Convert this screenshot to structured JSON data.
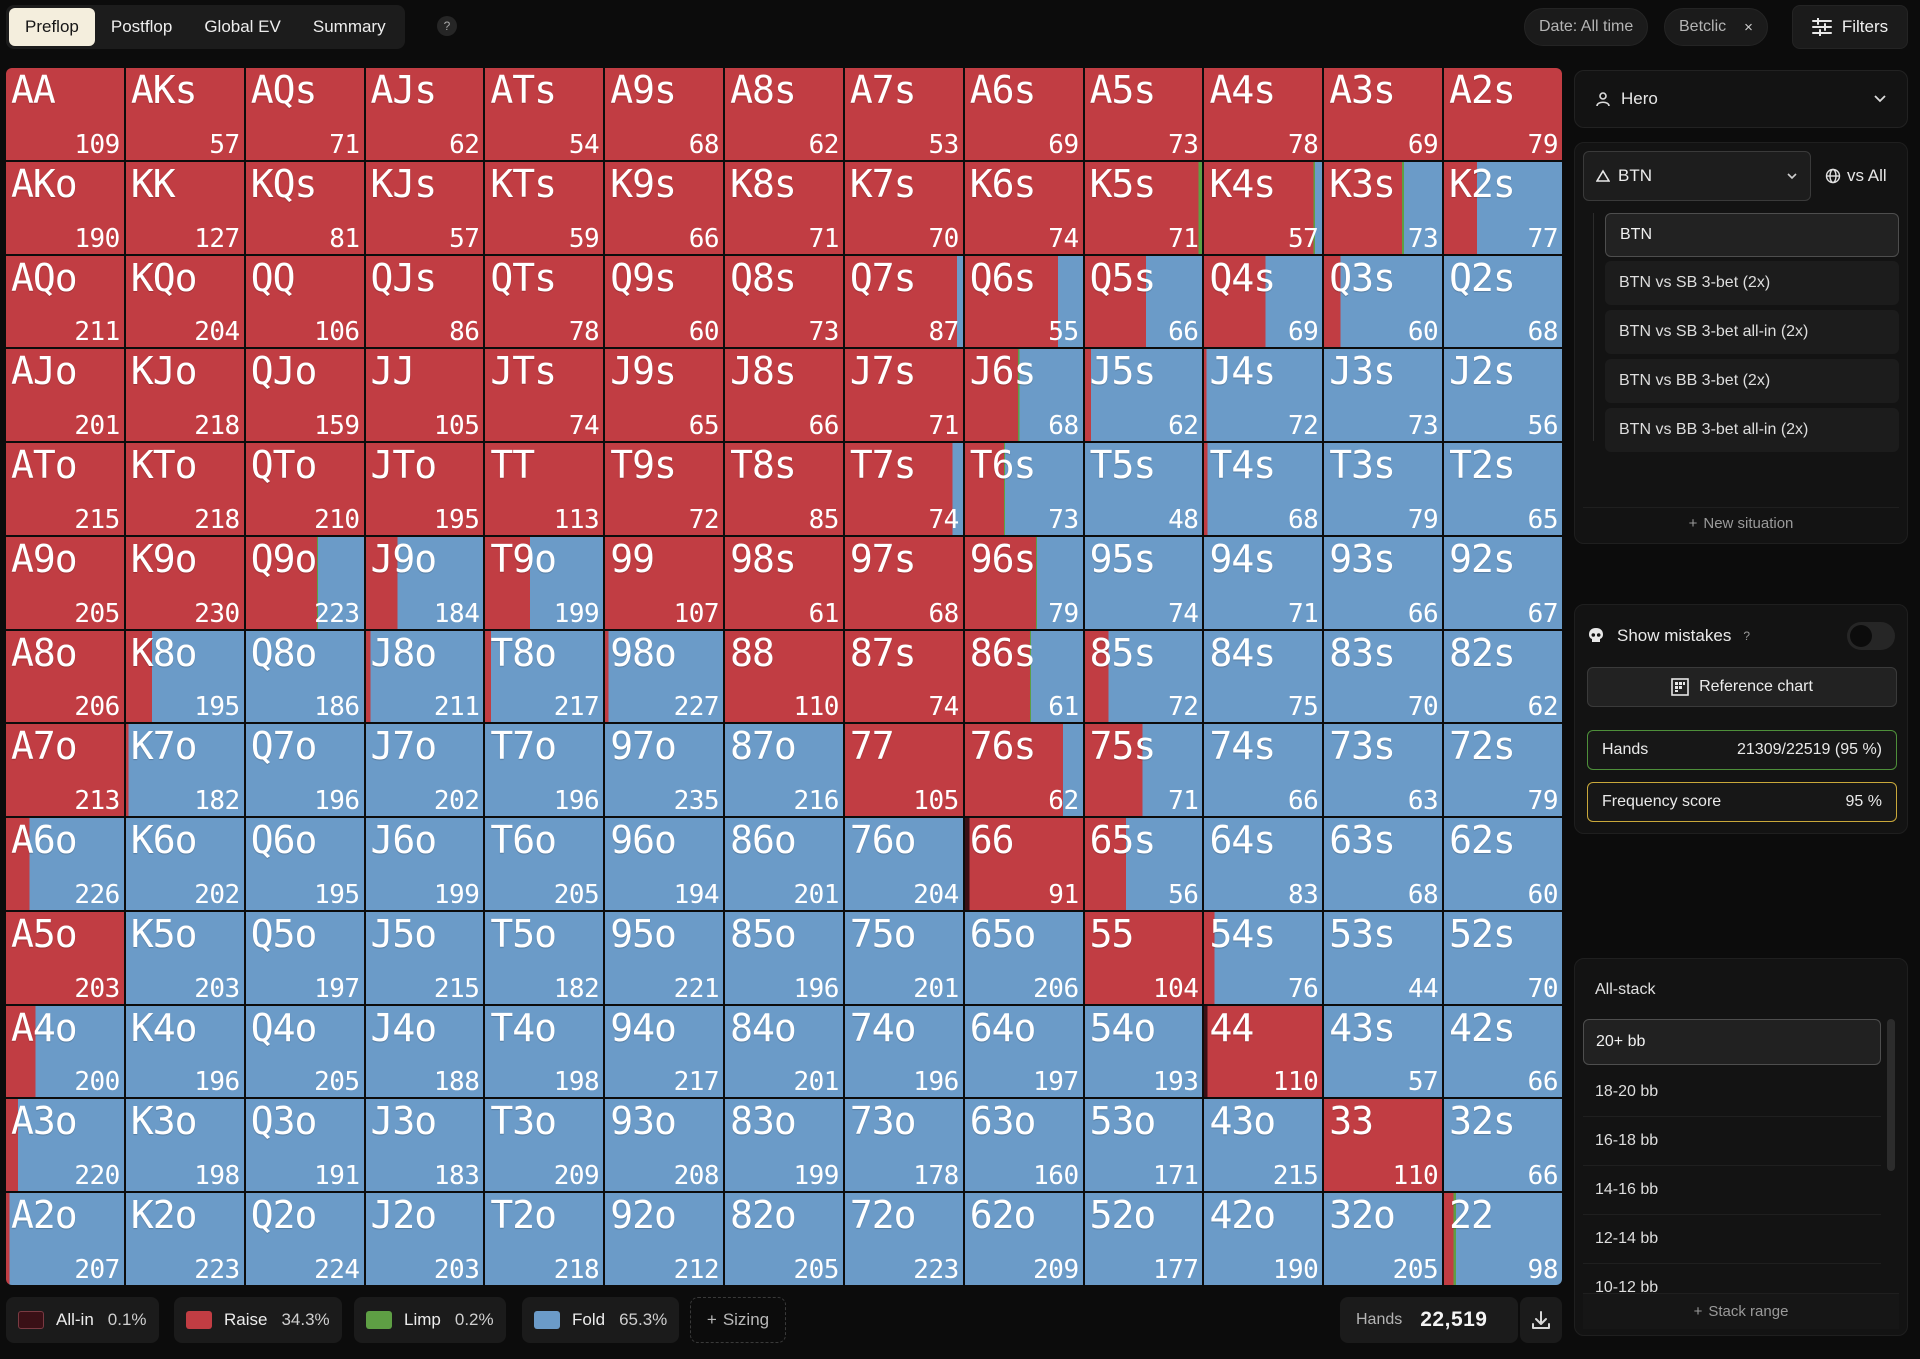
{
  "tabs": [
    {
      "label": "Preflop",
      "active": true
    },
    {
      "label": "Postflop",
      "active": false
    },
    {
      "label": "Global EV",
      "active": false
    },
    {
      "label": "Summary",
      "active": false
    }
  ],
  "help_label": "?",
  "date_chip": "Date: All time",
  "site_chip": "Betclic",
  "chip_close": "×",
  "filters_label": "Filters",
  "colors": {
    "allin": "#3a1016",
    "raise": "#c13d43",
    "limp": "#5e9f44",
    "fold": "#6b9bc8"
  },
  "grid": [
    [
      [
        "AA",
        "109",
        0,
        100,
        0,
        0
      ],
      [
        "AKs",
        "57",
        0,
        100,
        0,
        0
      ],
      [
        "AQs",
        "71",
        0,
        100,
        0,
        0
      ],
      [
        "AJs",
        "62",
        0,
        100,
        0,
        0
      ],
      [
        "ATs",
        "54",
        0,
        100,
        0,
        0
      ],
      [
        "A9s",
        "68",
        0,
        100,
        0,
        0
      ],
      [
        "A8s",
        "62",
        0,
        100,
        0,
        0
      ],
      [
        "A7s",
        "53",
        0,
        100,
        0,
        0
      ],
      [
        "A6s",
        "69",
        0,
        100,
        0,
        0
      ],
      [
        "A5s",
        "73",
        0,
        100,
        0,
        0
      ],
      [
        "A4s",
        "78",
        0,
        100,
        0,
        0
      ],
      [
        "A3s",
        "69",
        0,
        100,
        0,
        0
      ],
      [
        "A2s",
        "79",
        0,
        100,
        0,
        0
      ]
    ],
    [
      [
        "AKo",
        "190",
        0,
        100,
        0,
        0
      ],
      [
        "KK",
        "127",
        0,
        100,
        0,
        0
      ],
      [
        "KQs",
        "81",
        0,
        100,
        0,
        0
      ],
      [
        "KJs",
        "57",
        0,
        100,
        0,
        0
      ],
      [
        "KTs",
        "59",
        0,
        100,
        0,
        0
      ],
      [
        "K9s",
        "66",
        0,
        100,
        0,
        0
      ],
      [
        "K8s",
        "71",
        0,
        100,
        0,
        0
      ],
      [
        "K7s",
        "70",
        0,
        100,
        0,
        0
      ],
      [
        "K6s",
        "74",
        0,
        100,
        0,
        0
      ],
      [
        "K5s",
        "71",
        0,
        97,
        3,
        0
      ],
      [
        "K4s",
        "57",
        0,
        93,
        1,
        6
      ],
      [
        "K3s",
        "73",
        0,
        66,
        2,
        32
      ],
      [
        "K2s",
        "77",
        0,
        28,
        0,
        72
      ]
    ],
    [
      [
        "AQo",
        "211",
        0,
        100,
        0,
        0
      ],
      [
        "KQo",
        "204",
        0,
        100,
        0,
        0
      ],
      [
        "QQ",
        "106",
        0,
        100,
        0,
        0
      ],
      [
        "QJs",
        "86",
        0,
        100,
        0,
        0
      ],
      [
        "QTs",
        "78",
        0,
        100,
        0,
        0
      ],
      [
        "Q9s",
        "60",
        0,
        100,
        0,
        0
      ],
      [
        "Q8s",
        "73",
        0,
        100,
        0,
        0
      ],
      [
        "Q7s",
        "87",
        0,
        95,
        0,
        5
      ],
      [
        "Q6s",
        "55",
        0,
        79,
        0,
        21
      ],
      [
        "Q5s",
        "66",
        0,
        52,
        0,
        48
      ],
      [
        "Q4s",
        "69",
        0,
        52,
        0,
        48
      ],
      [
        "Q3s",
        "60",
        0,
        14,
        0,
        86
      ],
      [
        "Q2s",
        "68",
        0,
        0,
        0,
        100
      ]
    ],
    [
      [
        "AJo",
        "201",
        0,
        100,
        0,
        0
      ],
      [
        "KJo",
        "218",
        0,
        100,
        0,
        0
      ],
      [
        "QJo",
        "159",
        0,
        100,
        0,
        0
      ],
      [
        "JJ",
        "105",
        0,
        100,
        0,
        0
      ],
      [
        "JTs",
        "74",
        0,
        100,
        0,
        0
      ],
      [
        "J9s",
        "65",
        0,
        100,
        0,
        0
      ],
      [
        "J8s",
        "66",
        0,
        100,
        0,
        0
      ],
      [
        "J7s",
        "71",
        0,
        100,
        0,
        0
      ],
      [
        "J6s",
        "68",
        0,
        45,
        1,
        54
      ],
      [
        "J5s",
        "62",
        0,
        5,
        0,
        95
      ],
      [
        "J4s",
        "72",
        0,
        2,
        0,
        98
      ],
      [
        "J3s",
        "73",
        0,
        0,
        0,
        100
      ],
      [
        "J2s",
        "56",
        0,
        0,
        0,
        100
      ]
    ],
    [
      [
        "ATo",
        "215",
        0,
        100,
        0,
        0
      ],
      [
        "KTo",
        "218",
        0,
        100,
        0,
        0
      ],
      [
        "QTo",
        "210",
        0,
        100,
        0,
        0
      ],
      [
        "JTo",
        "195",
        0,
        100,
        0,
        0
      ],
      [
        "TT",
        "113",
        0,
        100,
        0,
        0
      ],
      [
        "T9s",
        "72",
        0,
        100,
        0,
        0
      ],
      [
        "T8s",
        "85",
        0,
        100,
        0,
        0
      ],
      [
        "T7s",
        "74",
        0,
        91,
        0,
        9
      ],
      [
        "T6s",
        "73",
        0,
        33,
        1,
        66
      ],
      [
        "T5s",
        "48",
        0,
        0,
        0,
        100
      ],
      [
        "T4s",
        "68",
        0,
        3,
        0,
        97
      ],
      [
        "T3s",
        "79",
        0,
        0,
        0,
        100
      ],
      [
        "T2s",
        "65",
        0,
        0,
        0,
        100
      ]
    ],
    [
      [
        "A9o",
        "205",
        0,
        100,
        0,
        0
      ],
      [
        "K9o",
        "230",
        0,
        100,
        0,
        0
      ],
      [
        "Q9o",
        "223",
        0,
        60,
        1,
        39
      ],
      [
        "J9o",
        "184",
        0,
        27,
        0,
        73
      ],
      [
        "T9o",
        "199",
        0,
        38,
        0,
        62
      ],
      [
        "99",
        "107",
        0,
        100,
        0,
        0
      ],
      [
        "98s",
        "61",
        0,
        100,
        0,
        0
      ],
      [
        "97s",
        "68",
        0,
        100,
        0,
        0
      ],
      [
        "96s",
        "79",
        0,
        60,
        1,
        39
      ],
      [
        "95s",
        "74",
        0,
        0,
        0,
        100
      ],
      [
        "94s",
        "71",
        0,
        0,
        0,
        100
      ],
      [
        "93s",
        "66",
        0,
        0,
        0,
        100
      ],
      [
        "92s",
        "67",
        0,
        0,
        0,
        100
      ]
    ],
    [
      [
        "A8o",
        "206",
        0,
        100,
        0,
        0
      ],
      [
        "K8o",
        "195",
        0,
        22,
        0,
        78
      ],
      [
        "Q8o",
        "186",
        0,
        0,
        0,
        100
      ],
      [
        "J8o",
        "211",
        0,
        4,
        0,
        96
      ],
      [
        "T8o",
        "217",
        0,
        5,
        0,
        95
      ],
      [
        "98o",
        "227",
        0,
        3,
        0,
        97
      ],
      [
        "88",
        "110",
        0,
        100,
        0,
        0
      ],
      [
        "87s",
        "74",
        0,
        100,
        0,
        0
      ],
      [
        "86s",
        "61",
        0,
        55,
        1,
        44
      ],
      [
        "85s",
        "72",
        0,
        20,
        0,
        80
      ],
      [
        "84s",
        "75",
        0,
        0,
        0,
        100
      ],
      [
        "83s",
        "70",
        0,
        0,
        0,
        100
      ],
      [
        "82s",
        "62",
        0,
        0,
        0,
        100
      ]
    ],
    [
      [
        "A7o",
        "213",
        0,
        100,
        0,
        0
      ],
      [
        "K7o",
        "182",
        0,
        2,
        0,
        98
      ],
      [
        "Q7o",
        "196",
        0,
        0,
        0,
        100
      ],
      [
        "J7o",
        "202",
        0,
        0,
        0,
        100
      ],
      [
        "T7o",
        "196",
        0,
        0,
        0,
        100
      ],
      [
        "97o",
        "235",
        0,
        0,
        0,
        100
      ],
      [
        "87o",
        "216",
        0,
        0,
        0,
        100
      ],
      [
        "77",
        "105",
        0,
        100,
        0,
        0
      ],
      [
        "76s",
        "62",
        0,
        83,
        0,
        17
      ],
      [
        "75s",
        "71",
        0,
        49,
        0,
        51
      ],
      [
        "74s",
        "66",
        0,
        0,
        0,
        100
      ],
      [
        "73s",
        "63",
        0,
        0,
        0,
        100
      ],
      [
        "72s",
        "79",
        0,
        0,
        0,
        100
      ]
    ],
    [
      [
        "A6o",
        "226",
        0,
        20,
        0,
        80
      ],
      [
        "K6o",
        "202",
        0,
        0,
        0,
        100
      ],
      [
        "Q6o",
        "195",
        0,
        0,
        0,
        100
      ],
      [
        "J6o",
        "199",
        0,
        0,
        0,
        100
      ],
      [
        "T6o",
        "205",
        0,
        0,
        0,
        100
      ],
      [
        "96o",
        "194",
        0,
        0,
        0,
        100
      ],
      [
        "86o",
        "201",
        0,
        0,
        0,
        100
      ],
      [
        "76o",
        "204",
        0,
        0,
        0,
        100
      ],
      [
        "66",
        "91",
        4,
        96,
        0,
        0
      ],
      [
        "65s",
        "56",
        0,
        35,
        0,
        65
      ],
      [
        "64s",
        "83",
        0,
        0,
        0,
        100
      ],
      [
        "63s",
        "68",
        0,
        0,
        0,
        100
      ],
      [
        "62s",
        "60",
        0,
        0,
        0,
        100
      ]
    ],
    [
      [
        "A5o",
        "203",
        0,
        100,
        0,
        0
      ],
      [
        "K5o",
        "203",
        0,
        0,
        0,
        100
      ],
      [
        "Q5o",
        "197",
        0,
        0,
        0,
        100
      ],
      [
        "J5o",
        "215",
        0,
        0,
        0,
        100
      ],
      [
        "T5o",
        "182",
        0,
        0,
        0,
        100
      ],
      [
        "95o",
        "221",
        0,
        0,
        0,
        100
      ],
      [
        "85o",
        "196",
        0,
        0,
        0,
        100
      ],
      [
        "75o",
        "201",
        0,
        0,
        0,
        100
      ],
      [
        "65o",
        "206",
        0,
        0,
        0,
        100
      ],
      [
        "55",
        "104",
        0,
        100,
        0,
        0
      ],
      [
        "54s",
        "76",
        0,
        9,
        0,
        91
      ],
      [
        "53s",
        "44",
        0,
        0,
        0,
        100
      ],
      [
        "52s",
        "70",
        0,
        0,
        0,
        100
      ]
    ],
    [
      [
        "A4o",
        "200",
        0,
        25,
        0,
        75
      ],
      [
        "K4o",
        "196",
        0,
        0,
        0,
        100
      ],
      [
        "Q4o",
        "205",
        0,
        0,
        0,
        100
      ],
      [
        "J4o",
        "188",
        0,
        0,
        0,
        100
      ],
      [
        "T4o",
        "198",
        0,
        0,
        0,
        100
      ],
      [
        "94o",
        "217",
        0,
        0,
        0,
        100
      ],
      [
        "84o",
        "201",
        0,
        0,
        0,
        100
      ],
      [
        "74o",
        "196",
        0,
        0,
        0,
        100
      ],
      [
        "64o",
        "197",
        0,
        0,
        0,
        100
      ],
      [
        "54o",
        "193",
        0,
        0,
        0,
        100
      ],
      [
        "44",
        "110",
        3,
        97,
        0,
        0
      ],
      [
        "43s",
        "57",
        0,
        0,
        0,
        100
      ],
      [
        "42s",
        "66",
        0,
        0,
        0,
        100
      ]
    ],
    [
      [
        "A3o",
        "220",
        0,
        10,
        0,
        90
      ],
      [
        "K3o",
        "198",
        0,
        0,
        0,
        100
      ],
      [
        "Q3o",
        "191",
        0,
        0,
        0,
        100
      ],
      [
        "J3o",
        "183",
        0,
        0,
        0,
        100
      ],
      [
        "T3o",
        "209",
        0,
        0,
        0,
        100
      ],
      [
        "93o",
        "208",
        0,
        0,
        0,
        100
      ],
      [
        "83o",
        "199",
        0,
        0,
        0,
        100
      ],
      [
        "73o",
        "178",
        0,
        0,
        0,
        100
      ],
      [
        "63o",
        "160",
        0,
        0,
        0,
        100
      ],
      [
        "53o",
        "171",
        0,
        0,
        0,
        100
      ],
      [
        "43o",
        "215",
        0,
        0,
        0,
        100
      ],
      [
        "33",
        "110",
        0,
        100,
        0,
        0
      ],
      [
        "32s",
        "66",
        0,
        0,
        0,
        100
      ]
    ],
    [
      [
        "A2o",
        "207",
        0,
        3,
        0,
        97
      ],
      [
        "K2o",
        "223",
        0,
        0,
        0,
        100
      ],
      [
        "Q2o",
        "224",
        0,
        0,
        0,
        100
      ],
      [
        "J2o",
        "203",
        0,
        0,
        0,
        100
      ],
      [
        "T2o",
        "218",
        0,
        0,
        0,
        100
      ],
      [
        "92o",
        "212",
        0,
        0,
        0,
        100
      ],
      [
        "82o",
        "205",
        0,
        0,
        0,
        100
      ],
      [
        "72o",
        "223",
        0,
        0,
        0,
        100
      ],
      [
        "62o",
        "209",
        0,
        0,
        0,
        100
      ],
      [
        "52o",
        "177",
        0,
        0,
        0,
        100
      ],
      [
        "42o",
        "190",
        0,
        0,
        0,
        100
      ],
      [
        "32o",
        "205",
        0,
        0,
        0,
        100
      ],
      [
        "22",
        "98",
        0,
        8,
        2,
        90
      ]
    ]
  ],
  "legend": [
    {
      "label": "All-in",
      "value": "0.1%",
      "color": "#3a1016"
    },
    {
      "label": "Raise",
      "value": "34.3%",
      "color": "#c13d43"
    },
    {
      "label": "Limp",
      "value": "0.2%",
      "color": "#5e9f44"
    },
    {
      "label": "Fold",
      "value": "65.3%",
      "color": "#6b9bc8"
    }
  ],
  "sizing_label": "Sizing",
  "hands_label": "Hands",
  "hands_total": "22,519",
  "hero_label": "Hero",
  "position_label": "BTN",
  "vs_label": "vs All",
  "situations": [
    {
      "label": "BTN",
      "active": true
    },
    {
      "label": "BTN vs SB 3-bet (2x)",
      "active": false
    },
    {
      "label": "BTN vs SB 3-bet all-in (2x)",
      "active": false
    },
    {
      "label": "BTN vs BB 3-bet (2x)",
      "active": false
    },
    {
      "label": "BTN vs BB 3-bet all-in (2x)",
      "active": false
    }
  ],
  "new_situation_label": "New situation",
  "show_mistakes_label": "Show mistakes",
  "reference_chart_label": "Reference chart",
  "stats": {
    "hands_label": "Hands",
    "hands_value": "21309/22519 (95 %)",
    "freq_label": "Frequency score",
    "freq_value": "95 %"
  },
  "stack_header": "All-stack",
  "stacks": [
    {
      "label": "20+ bb",
      "active": true
    },
    {
      "label": "18-20 bb",
      "active": false
    },
    {
      "label": "16-18 bb",
      "active": false
    },
    {
      "label": "14-16 bb",
      "active": false
    },
    {
      "label": "12-14 bb",
      "active": false
    },
    {
      "label": "10-12 bb",
      "active": false
    }
  ],
  "stack_range_label": "Stack range"
}
